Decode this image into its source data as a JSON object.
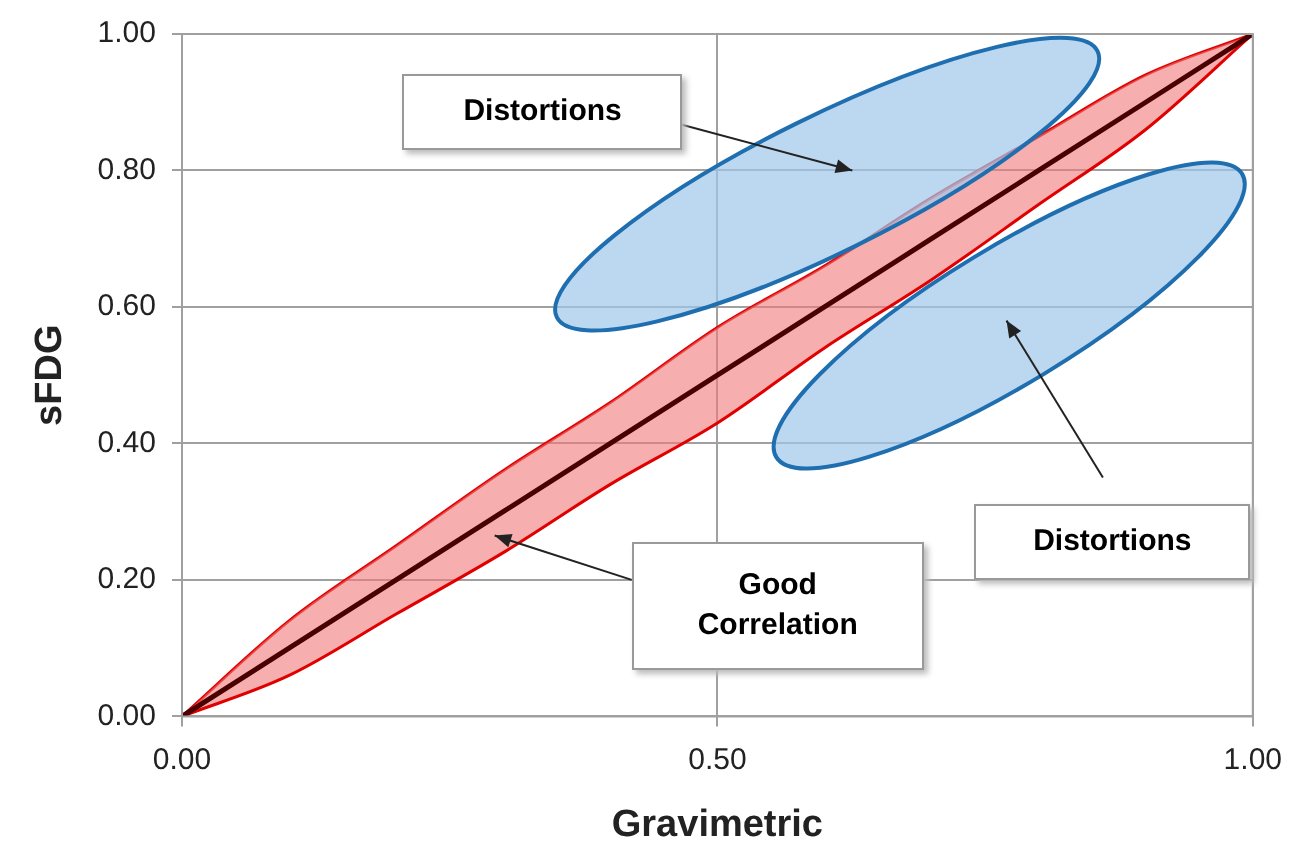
{
  "chart_data": {
    "type": "line",
    "xlabel": "Gravimetric",
    "ylabel": "sFDG",
    "x": [
      0,
      0.1,
      0.2,
      0.3,
      0.4,
      0.5,
      0.6,
      0.7,
      0.8,
      0.9,
      1
    ],
    "series": [
      {
        "color": "#4a0000",
        "values": [
          0,
          0.1,
          0.2,
          0.3,
          0.4,
          0.5,
          0.6,
          0.7,
          0.8,
          0.9,
          1
        ],
        "lower": [
          0,
          0.06,
          0.15,
          0.24,
          0.34,
          0.43,
          0.54,
          0.64,
          0.75,
          0.86,
          1
        ],
        "upper": [
          0,
          0.14,
          0.25,
          0.36,
          0.46,
          0.57,
          0.66,
          0.76,
          0.85,
          0.94,
          1
        ]
      }
    ],
    "xlim": [
      0,
      1
    ],
    "xticks": [
      {
        "value": 0,
        "label": "0.00"
      },
      {
        "value": 0.5,
        "label": "0.50"
      },
      {
        "value": 1,
        "label": "1.00"
      }
    ],
    "ylim": [
      0,
      1
    ],
    "yticks": [
      {
        "value": 0,
        "label": "0.00"
      },
      {
        "value": 0.2,
        "label": "0.20"
      },
      {
        "value": 0.4,
        "label": "0.40"
      },
      {
        "value": 0.6,
        "label": "0.60"
      },
      {
        "value": 0.8,
        "label": "0.80"
      },
      {
        "value": 1,
        "label": "1.00"
      }
    ],
    "grid": true,
    "legend": false,
    "marker": "none",
    "line_style": "solid",
    "annotations": [
      "Distortions",
      "Distortions",
      "Good Correlation"
    ]
  }
}
